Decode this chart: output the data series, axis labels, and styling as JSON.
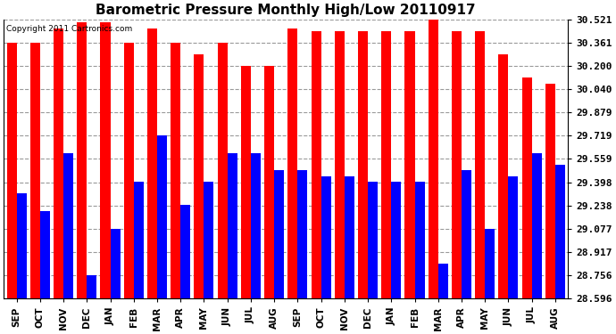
{
  "title": "Barometric Pressure Monthly High/Low 20110917",
  "copyright": "Copyright 2011 Cartronics.com",
  "categories": [
    "SEP",
    "OCT",
    "NOV",
    "DEC",
    "JAN",
    "FEB",
    "MAR",
    "APR",
    "MAY",
    "JUN",
    "JUL",
    "AUG",
    "SEP",
    "OCT",
    "NOV",
    "DEC",
    "JAN",
    "FEB",
    "MAR",
    "APR",
    "MAY",
    "JUN",
    "JUL",
    "AUG"
  ],
  "highs": [
    30.36,
    30.36,
    30.46,
    30.5,
    30.5,
    30.36,
    30.46,
    30.36,
    30.28,
    30.36,
    30.2,
    30.2,
    30.46,
    30.44,
    30.44,
    30.44,
    30.44,
    30.44,
    30.52,
    30.44,
    30.44,
    30.28,
    30.12,
    30.08
  ],
  "lows": [
    29.32,
    29.2,
    29.6,
    28.76,
    29.08,
    29.4,
    29.72,
    29.24,
    29.4,
    29.6,
    29.6,
    29.48,
    29.48,
    29.44,
    29.44,
    29.4,
    29.4,
    29.4,
    28.84,
    29.48,
    29.08,
    29.44,
    29.6,
    29.52
  ],
  "high_color": "#FF0000",
  "low_color": "#0000FF",
  "bg_color": "#FFFFFF",
  "plot_bg_color": "#FFFFFF",
  "grid_color": "#999999",
  "title_fontsize": 11,
  "ylabel_fontsize": 8,
  "xlabel_fontsize": 7.5,
  "ymin": 28.596,
  "ymax": 30.521,
  "yticks": [
    28.596,
    28.756,
    28.917,
    29.077,
    29.238,
    29.398,
    29.559,
    29.719,
    29.879,
    30.04,
    30.2,
    30.361,
    30.521
  ]
}
